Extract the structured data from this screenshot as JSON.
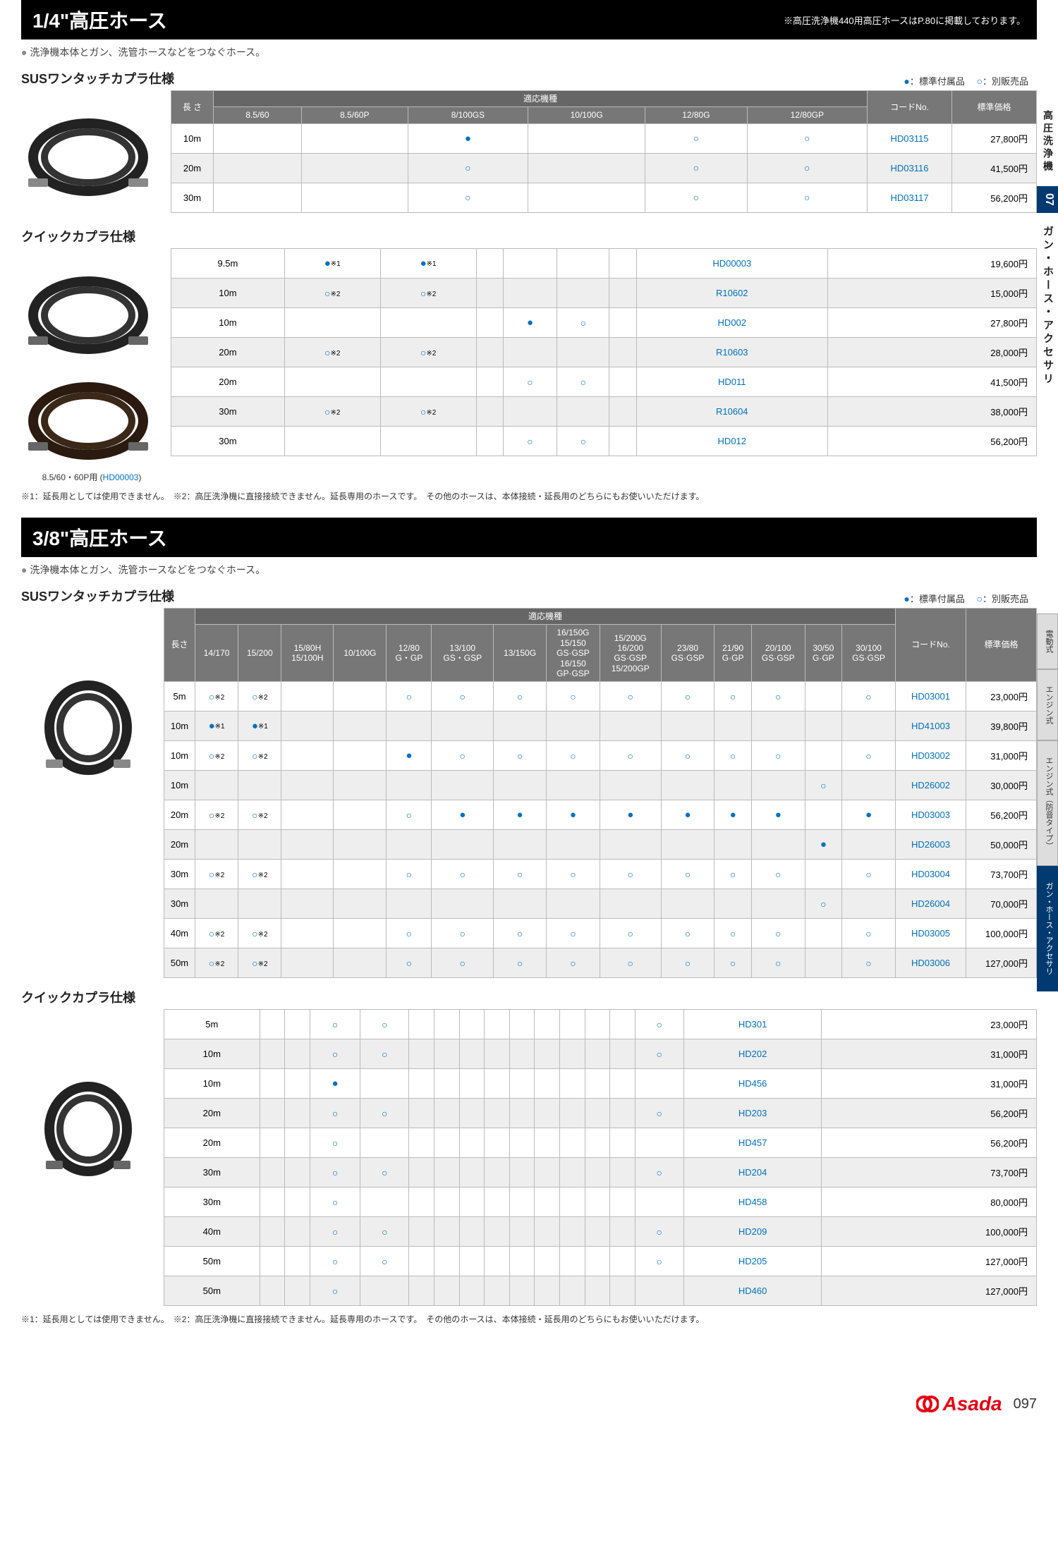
{
  "page_number": "097",
  "brand": "Asada",
  "colors": {
    "accent": "#0070c0",
    "header_bg": "#777",
    "brand_red": "#e60012",
    "nav_blue": "#003a70"
  },
  "legends": {
    "filled": "：標準付属品",
    "open": "：別販売品"
  },
  "footnote_text": "※1：延長用としては使用できません。　※2：高圧洗浄機に直接接続できません。延長専用のホースです。　その他のホースは、本体接続・延長用のどちらにもお使いいただけます。",
  "side1": {
    "cat": "高圧洗浄機",
    "num": "07",
    "title": "ガン・ホース・アクセサリ"
  },
  "side2": {
    "tabs": [
      "電動式",
      "エンジン式",
      "エンジン式（防音タイプ）",
      "ガン・ホース・アクセサリ"
    ],
    "active_index": 3
  },
  "s1": {
    "title": "1/4\"高圧ホース",
    "note": "※高圧洗浄機440用高圧ホースはP.80に掲載しております。",
    "desc": "洗浄機本体とガン、洗管ホースなどをつなぐホース。",
    "a_label": "SUSワンタッチカプラ仕様",
    "b_label": "クイックカプラ仕様",
    "caption": {
      "t1": "8.5/60・60P用 (",
      "code": "HD00003",
      "t2": ")"
    },
    "headers": {
      "length": "長 さ",
      "group": "適応機種",
      "cols": [
        "8.5/60",
        "8.5/60P",
        "8/100GS",
        "10/100G",
        "12/80G",
        "12/80GP"
      ],
      "code": "コードNo.",
      "price": "標準価格"
    },
    "a_rows": [
      {
        "len": "10m",
        "m": [
          "",
          "",
          "f",
          "",
          "o",
          "o"
        ],
        "code": "HD03115",
        "price": "27,800円"
      },
      {
        "len": "20m",
        "m": [
          "",
          "",
          "o",
          "",
          "o",
          "o"
        ],
        "code": "HD03116",
        "price": "41,500円"
      },
      {
        "len": "30m",
        "m": [
          "",
          "",
          "o",
          "",
          "o",
          "o"
        ],
        "code": "HD03117",
        "price": "56,200円"
      }
    ],
    "b_rows": [
      {
        "len": "9.5m",
        "m": [
          "f※1",
          "f※1",
          "",
          "",
          "",
          ""
        ],
        "code": "HD00003",
        "price": "19,600円"
      },
      {
        "len": "10m",
        "m": [
          "o※2",
          "o※2",
          "",
          "",
          "",
          ""
        ],
        "code": "R10602",
        "price": "15,000円"
      },
      {
        "len": "10m",
        "m": [
          "",
          "",
          "",
          "f",
          "o",
          ""
        ],
        "code": "HD002",
        "price": "27,800円"
      },
      {
        "len": "20m",
        "m": [
          "o※2",
          "o※2",
          "",
          "",
          "",
          ""
        ],
        "code": "R10603",
        "price": "28,000円"
      },
      {
        "len": "20m",
        "m": [
          "",
          "",
          "",
          "o",
          "o",
          ""
        ],
        "code": "HD011",
        "price": "41,500円"
      },
      {
        "len": "30m",
        "m": [
          "o※2",
          "o※2",
          "",
          "",
          "",
          ""
        ],
        "code": "R10604",
        "price": "38,000円"
      },
      {
        "len": "30m",
        "m": [
          "",
          "",
          "",
          "o",
          "o",
          ""
        ],
        "code": "HD012",
        "price": "56,200円"
      }
    ]
  },
  "s2": {
    "title": "3/8\"高圧ホース",
    "desc": "洗浄機本体とガン、洗管ホースなどをつなぐホース。",
    "a_label": "SUSワンタッチカプラ仕様",
    "b_label": "クイックカプラ仕様",
    "headers": {
      "length": "長さ",
      "group": "適応機種",
      "cols": [
        "14/170",
        "15/200",
        "15/80H\n15/100H",
        "10/100G",
        "12/80\nG・GP",
        "13/100\nGS・GSP",
        "13/150G",
        "16/150G\n15/150\nGS·GSP\n16/150\nGP·GSP",
        "15/200G\n16/200\nGS·GSP\n15/200GP",
        "23/80\nGS·GSP",
        "21/90\nG·GP",
        "20/100\nGS·GSP",
        "30/50\nG·GP",
        "30/100\nGS·GSP"
      ],
      "code": "コードNo.",
      "price": "標準価格"
    },
    "a_rows": [
      {
        "len": "5m",
        "m": [
          "o※2",
          "o※2",
          "",
          "",
          "o",
          "o",
          "o",
          "o",
          "o",
          "o",
          "o",
          "o",
          "",
          "o"
        ],
        "code": "HD03001",
        "price": "23,000円"
      },
      {
        "len": "10m",
        "m": [
          "f※1",
          "f※1",
          "",
          "",
          "",
          "",
          "",
          "",
          "",
          "",
          "",
          "",
          "",
          ""
        ],
        "code": "HD41003",
        "price": "39,800円"
      },
      {
        "len": "10m",
        "m": [
          "o※2",
          "o※2",
          "",
          "",
          "f",
          "o",
          "o",
          "o",
          "o",
          "o",
          "o",
          "o",
          "",
          "o"
        ],
        "code": "HD03002",
        "price": "31,000円"
      },
      {
        "len": "10m",
        "m": [
          "",
          "",
          "",
          "",
          "",
          "",
          "",
          "",
          "",
          "",
          "",
          "",
          "o",
          ""
        ],
        "code": "HD26002",
        "price": "30,000円"
      },
      {
        "len": "20m",
        "m": [
          "o※2",
          "o※2",
          "",
          "",
          "o",
          "f",
          "f",
          "f",
          "f",
          "f",
          "f",
          "f",
          "",
          "f"
        ],
        "code": "HD03003",
        "price": "56,200円"
      },
      {
        "len": "20m",
        "m": [
          "",
          "",
          "",
          "",
          "",
          "",
          "",
          "",
          "",
          "",
          "",
          "",
          "f",
          ""
        ],
        "code": "HD26003",
        "price": "50,000円"
      },
      {
        "len": "30m",
        "m": [
          "o※2",
          "o※2",
          "",
          "",
          "o",
          "o",
          "o",
          "o",
          "o",
          "o",
          "o",
          "o",
          "",
          "o"
        ],
        "code": "HD03004",
        "price": "73,700円"
      },
      {
        "len": "30m",
        "m": [
          "",
          "",
          "",
          "",
          "",
          "",
          "",
          "",
          "",
          "",
          "",
          "",
          "o",
          ""
        ],
        "code": "HD26004",
        "price": "70,000円"
      },
      {
        "len": "40m",
        "m": [
          "o※2",
          "o※2",
          "",
          "",
          "o",
          "o",
          "o",
          "o",
          "o",
          "o",
          "o",
          "o",
          "",
          "o"
        ],
        "code": "HD03005",
        "price": "100,000円"
      },
      {
        "len": "50m",
        "m": [
          "o※2",
          "o※2",
          "",
          "",
          "o",
          "o",
          "o",
          "o",
          "o",
          "o",
          "o",
          "o",
          "",
          "o"
        ],
        "code": "HD03006",
        "price": "127,000円"
      }
    ],
    "b_rows": [
      {
        "len": "5m",
        "m": [
          "",
          "",
          "o",
          "o",
          "",
          "",
          "",
          "",
          "",
          "",
          "",
          "",
          "",
          "o"
        ],
        "code": "HD301",
        "price": "23,000円"
      },
      {
        "len": "10m",
        "m": [
          "",
          "",
          "o",
          "o",
          "",
          "",
          "",
          "",
          "",
          "",
          "",
          "",
          "",
          "o"
        ],
        "code": "HD202",
        "price": "31,000円"
      },
      {
        "len": "10m",
        "m": [
          "",
          "",
          "f",
          "",
          "",
          "",
          "",
          "",
          "",
          "",
          "",
          "",
          "",
          ""
        ],
        "code": "HD456",
        "price": "31,000円"
      },
      {
        "len": "20m",
        "m": [
          "",
          "",
          "o",
          "o",
          "",
          "",
          "",
          "",
          "",
          "",
          "",
          "",
          "",
          "o"
        ],
        "code": "HD203",
        "price": "56,200円"
      },
      {
        "len": "20m",
        "m": [
          "",
          "",
          "o",
          "",
          "",
          "",
          "",
          "",
          "",
          "",
          "",
          "",
          "",
          ""
        ],
        "code": "HD457",
        "price": "56,200円"
      },
      {
        "len": "30m",
        "m": [
          "",
          "",
          "o",
          "o",
          "",
          "",
          "",
          "",
          "",
          "",
          "",
          "",
          "",
          "o"
        ],
        "code": "HD204",
        "price": "73,700円"
      },
      {
        "len": "30m",
        "m": [
          "",
          "",
          "o",
          "",
          "",
          "",
          "",
          "",
          "",
          "",
          "",
          "",
          "",
          ""
        ],
        "code": "HD458",
        "price": "80,000円"
      },
      {
        "len": "40m",
        "m": [
          "",
          "",
          "o",
          "o",
          "",
          "",
          "",
          "",
          "",
          "",
          "",
          "",
          "",
          "o"
        ],
        "code": "HD209",
        "price": "100,000円"
      },
      {
        "len": "50m",
        "m": [
          "",
          "",
          "o",
          "o",
          "",
          "",
          "",
          "",
          "",
          "",
          "",
          "",
          "",
          "o"
        ],
        "code": "HD205",
        "price": "127,000円"
      },
      {
        "len": "50m",
        "m": [
          "",
          "",
          "o",
          "",
          "",
          "",
          "",
          "",
          "",
          "",
          "",
          "",
          "",
          ""
        ],
        "code": "HD460",
        "price": "127,000円"
      }
    ]
  }
}
